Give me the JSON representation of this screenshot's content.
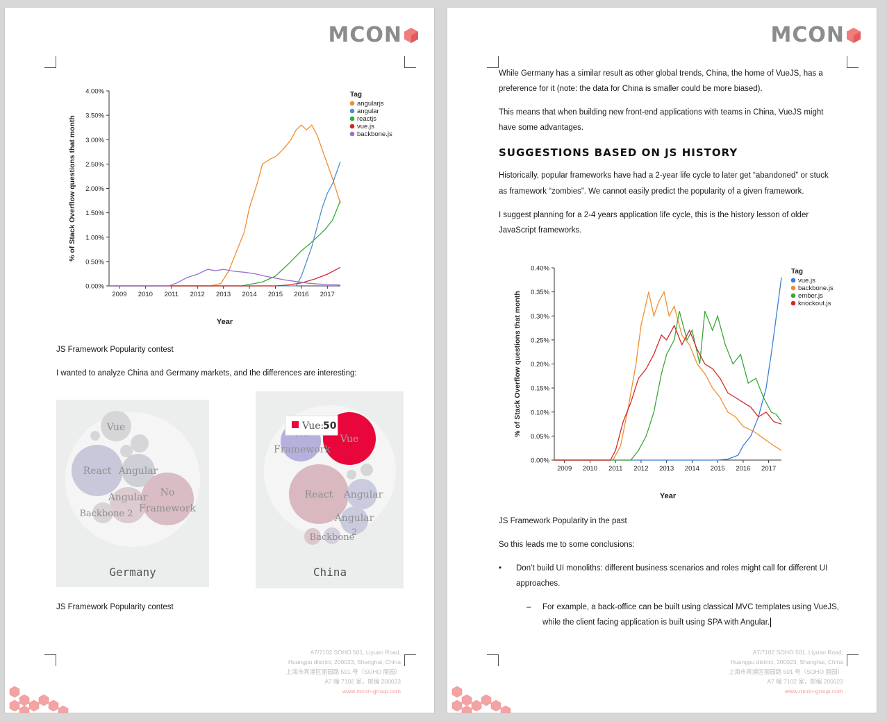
{
  "logo": {
    "text": "MCON"
  },
  "left_page": {
    "chart": {
      "ylabel": "% of Stack Overflow questions that month",
      "xlabel": "Year",
      "legend_title": "Tag"
    },
    "caption1": "JS Framework Popularity contest",
    "para1": "I wanted to analyze China and Germany markets, and the differences are interesting:",
    "germany": {
      "label": "Germany",
      "bubbles": {
        "vue": "Vue",
        "react": "React",
        "angular": "Angular",
        "angular2": "Angular",
        "backbone2": "Backbone 2",
        "noframework1": "No",
        "noframework2": "Framework"
      }
    },
    "china": {
      "label": "China",
      "tooltip_name": "Vue:",
      "tooltip_value": "50",
      "bubbles": {
        "noframework1": "No",
        "noframework2": "Framework",
        "vue": "Vue",
        "react": "React",
        "angular": "Angular",
        "angular2a": "Angular",
        "angular2b": "2",
        "backbone": "Backbone"
      }
    },
    "caption2": "JS Framework Popularity contest"
  },
  "right_page": {
    "p1_line1": "While Germany has a similar result as other global trends, China, the home of VueJS, has a",
    "p1_line2": "preference for it (note: the data for China is smaller could be more biased).",
    "p2_line1": "This means that when building new front-end applications with teams in China, VueJS might",
    "p2_line2": "have some advantages.",
    "heading": "SUGGESTIONS BASED ON JS HISTORY",
    "p3_line1": "Historically, popular frameworks have had a 2-year life cycle to later get “abandoned” or stuck",
    "p3_line2": "as framework “zombies”. We cannot easily predict the popularity of a given framework.",
    "p4_line1": "I suggest planning for a 2-4 years application life cycle, this is the history lesson of older",
    "p4_line2": "JavaScript frameworks.",
    "chart": {
      "ylabel": "% of Stack Overflow questions that month",
      "xlabel": "Year",
      "legend_title": "Tag"
    },
    "caption": "JS Framework Popularity in the past",
    "p5": "So this leads me to some conclusions:",
    "bullet_char": "•",
    "bullet1_line1": "Don’t build UI monoliths: different business scenarios and roles might call for different UI",
    "bullet1_line2": "approaches.",
    "dash_char": "–",
    "sub1_line1": "For example, a back-office can be built using classical MVC templates using VueJS,",
    "sub1_line2": "while the client facing application is built using SPA with Angular."
  },
  "footer": {
    "line1": "A7/7102 SOHO 501, Liyuan Road,",
    "line2": "Huangpu district, 200023, Shanghai, China",
    "line3": "上海市宾浦区丽园路 501 号（SOHO 丽园）",
    "line4": "A7 幢 7102 室，邮编 200023",
    "web": "www.mcon-group.com"
  },
  "chart_data": [
    {
      "type": "line",
      "ylabel": "% of Stack Overflow questions that month",
      "xlabel": "Year",
      "legend_title": "Tag",
      "legend_position": "top-right",
      "y_ticks": [
        "0.00%",
        "0.50%",
        "1.00%",
        "1.50%",
        "2.00%",
        "2.50%",
        "3.00%",
        "3.50%",
        "4.00%"
      ],
      "x_ticks": [
        "2009",
        "2010",
        "2011",
        "2012",
        "2013",
        "2014",
        "2015",
        "2016",
        "2017"
      ],
      "xlim": [
        2008.6,
        2017.5
      ],
      "ylim": [
        0,
        4.0
      ],
      "series": [
        {
          "name": "angularjs",
          "color": "#f28e2b",
          "points": [
            [
              2008.6,
              0
            ],
            [
              2012.5,
              0
            ],
            [
              2012.9,
              0.05
            ],
            [
              2013.2,
              0.3
            ],
            [
              2013.5,
              0.7
            ],
            [
              2013.8,
              1.1
            ],
            [
              2014.0,
              1.6
            ],
            [
              2014.3,
              2.1
            ],
            [
              2014.5,
              2.5
            ],
            [
              2014.8,
              2.6
            ],
            [
              2015.0,
              2.65
            ],
            [
              2015.3,
              2.8
            ],
            [
              2015.6,
              3.0
            ],
            [
              2015.8,
              3.2
            ],
            [
              2016.0,
              3.3
            ],
            [
              2016.2,
              3.2
            ],
            [
              2016.4,
              3.3
            ],
            [
              2016.6,
              3.1
            ],
            [
              2016.8,
              2.8
            ],
            [
              2017.0,
              2.5
            ],
            [
              2017.2,
              2.2
            ],
            [
              2017.5,
              1.7
            ]
          ]
        },
        {
          "name": "angular",
          "color": "#4e8ec9",
          "points": [
            [
              2008.6,
              0
            ],
            [
              2015.8,
              0
            ],
            [
              2016.0,
              0.2
            ],
            [
              2016.2,
              0.5
            ],
            [
              2016.4,
              0.8
            ],
            [
              2016.6,
              1.2
            ],
            [
              2016.8,
              1.6
            ],
            [
              2017.0,
              1.9
            ],
            [
              2017.2,
              2.1
            ],
            [
              2017.5,
              2.55
            ]
          ]
        },
        {
          "name": "reactjs",
          "color": "#3aa73a",
          "points": [
            [
              2008.6,
              0
            ],
            [
              2013.7,
              0
            ],
            [
              2014.0,
              0.03
            ],
            [
              2014.5,
              0.08
            ],
            [
              2015.0,
              0.2
            ],
            [
              2015.5,
              0.45
            ],
            [
              2016.0,
              0.72
            ],
            [
              2016.3,
              0.85
            ],
            [
              2016.6,
              1.0
            ],
            [
              2016.9,
              1.15
            ],
            [
              2017.2,
              1.35
            ],
            [
              2017.5,
              1.75
            ]
          ]
        },
        {
          "name": "vue.js",
          "color": "#d62728",
          "points": [
            [
              2008.6,
              0
            ],
            [
              2015.0,
              0
            ],
            [
              2015.5,
              0.02
            ],
            [
              2016.0,
              0.06
            ],
            [
              2016.5,
              0.14
            ],
            [
              2017.0,
              0.24
            ],
            [
              2017.5,
              0.38
            ]
          ]
        },
        {
          "name": "backbone.js",
          "color": "#9b6fcf",
          "points": [
            [
              2008.6,
              0
            ],
            [
              2010.9,
              0
            ],
            [
              2011.2,
              0.06
            ],
            [
              2011.6,
              0.17
            ],
            [
              2012.0,
              0.24
            ],
            [
              2012.4,
              0.34
            ],
            [
              2012.7,
              0.31
            ],
            [
              2013.0,
              0.34
            ],
            [
              2013.4,
              0.3
            ],
            [
              2013.8,
              0.28
            ],
            [
              2014.2,
              0.25
            ],
            [
              2014.6,
              0.2
            ],
            [
              2015.0,
              0.16
            ],
            [
              2015.4,
              0.12
            ],
            [
              2015.8,
              0.09
            ],
            [
              2016.2,
              0.06
            ],
            [
              2016.6,
              0.04
            ],
            [
              2017.0,
              0.03
            ],
            [
              2017.5,
              0.02
            ]
          ]
        }
      ]
    },
    {
      "type": "line",
      "ylabel": "% of Stack Overflow questions that month",
      "xlabel": "Year",
      "legend_title": "Tag",
      "legend_position": "top-right",
      "y_ticks": [
        "0.00%",
        "0.05%",
        "0.10%",
        "0.15%",
        "0.20%",
        "0.25%",
        "0.30%",
        "0.35%",
        "0.40%"
      ],
      "x_ticks": [
        "2009",
        "2010",
        "2011",
        "2012",
        "2013",
        "2014",
        "2015",
        "2016",
        "2017"
      ],
      "xlim": [
        2008.6,
        2017.5
      ],
      "ylim": [
        0,
        0.4
      ],
      "series": [
        {
          "name": "vue.js",
          "color": "#3b7dd8",
          "points": [
            [
              2008.6,
              0
            ],
            [
              2015.0,
              0
            ],
            [
              2015.4,
              0.002
            ],
            [
              2015.8,
              0.01
            ],
            [
              2016.0,
              0.03
            ],
            [
              2016.3,
              0.05
            ],
            [
              2016.6,
              0.09
            ],
            [
              2016.9,
              0.15
            ],
            [
              2017.1,
              0.22
            ],
            [
              2017.3,
              0.3
            ],
            [
              2017.5,
              0.38
            ]
          ]
        },
        {
          "name": "backbone.js",
          "color": "#f28e2b",
          "points": [
            [
              2008.6,
              0
            ],
            [
              2010.9,
              0
            ],
            [
              2011.2,
              0.03
            ],
            [
              2011.5,
              0.11
            ],
            [
              2011.8,
              0.2
            ],
            [
              2012.0,
              0.28
            ],
            [
              2012.3,
              0.35
            ],
            [
              2012.5,
              0.3
            ],
            [
              2012.7,
              0.33
            ],
            [
              2012.9,
              0.35
            ],
            [
              2013.1,
              0.3
            ],
            [
              2013.3,
              0.32
            ],
            [
              2013.6,
              0.26
            ],
            [
              2013.9,
              0.24
            ],
            [
              2014.2,
              0.2
            ],
            [
              2014.5,
              0.18
            ],
            [
              2014.8,
              0.15
            ],
            [
              2015.1,
              0.13
            ],
            [
              2015.4,
              0.1
            ],
            [
              2015.7,
              0.09
            ],
            [
              2016.0,
              0.07
            ],
            [
              2016.4,
              0.06
            ],
            [
              2016.8,
              0.045
            ],
            [
              2017.2,
              0.03
            ],
            [
              2017.5,
              0.02
            ]
          ]
        },
        {
          "name": "ember.js",
          "color": "#3aa73a",
          "points": [
            [
              2008.6,
              0
            ],
            [
              2011.6,
              0
            ],
            [
              2011.9,
              0.02
            ],
            [
              2012.2,
              0.05
            ],
            [
              2012.5,
              0.1
            ],
            [
              2012.8,
              0.18
            ],
            [
              2013.0,
              0.22
            ],
            [
              2013.3,
              0.25
            ],
            [
              2013.5,
              0.31
            ],
            [
              2013.8,
              0.25
            ],
            [
              2014.0,
              0.27
            ],
            [
              2014.3,
              0.2
            ],
            [
              2014.5,
              0.31
            ],
            [
              2014.8,
              0.27
            ],
            [
              2015.0,
              0.3
            ],
            [
              2015.3,
              0.24
            ],
            [
              2015.6,
              0.2
            ],
            [
              2015.9,
              0.22
            ],
            [
              2016.2,
              0.16
            ],
            [
              2016.5,
              0.17
            ],
            [
              2016.8,
              0.13
            ],
            [
              2017.1,
              0.1
            ],
            [
              2017.3,
              0.095
            ],
            [
              2017.5,
              0.08
            ]
          ]
        },
        {
          "name": "knockout.js",
          "color": "#d62728",
          "points": [
            [
              2008.6,
              0
            ],
            [
              2010.8,
              0
            ],
            [
              2011.0,
              0.02
            ],
            [
              2011.3,
              0.08
            ],
            [
              2011.6,
              0.12
            ],
            [
              2011.9,
              0.17
            ],
            [
              2012.2,
              0.19
            ],
            [
              2012.5,
              0.22
            ],
            [
              2012.8,
              0.26
            ],
            [
              2013.0,
              0.25
            ],
            [
              2013.3,
              0.28
            ],
            [
              2013.6,
              0.24
            ],
            [
              2013.9,
              0.27
            ],
            [
              2014.2,
              0.23
            ],
            [
              2014.5,
              0.2
            ],
            [
              2014.8,
              0.19
            ],
            [
              2015.1,
              0.17
            ],
            [
              2015.4,
              0.14
            ],
            [
              2015.7,
              0.13
            ],
            [
              2016.0,
              0.12
            ],
            [
              2016.3,
              0.11
            ],
            [
              2016.6,
              0.09
            ],
            [
              2016.9,
              0.1
            ],
            [
              2017.2,
              0.08
            ],
            [
              2017.5,
              0.075
            ]
          ]
        }
      ]
    }
  ]
}
